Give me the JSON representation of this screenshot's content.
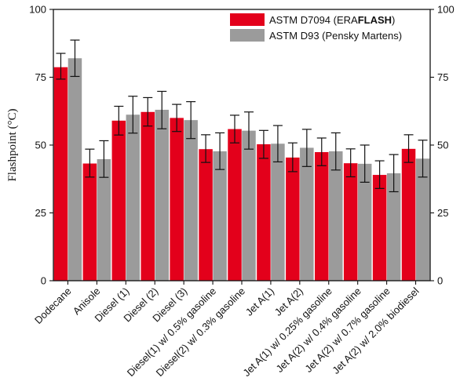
{
  "chart_data": {
    "type": "bar",
    "title": "",
    "xlabel": "",
    "ylabel": "Flashpoint (°C)",
    "ylim": [
      0,
      100
    ],
    "yticks": [
      0,
      25,
      50,
      75,
      100
    ],
    "legend_position": "top-right",
    "grid": false,
    "categories": [
      "Dodecane",
      "Anisole",
      "Diesel (1)",
      "Diesel (2)",
      "Diesel (3)",
      "Diesel(1) w/ 0.5% gasoline",
      "Diesel(2) w/ 0.3% gasoline",
      "Jet A(1)",
      "Jet A(2)",
      "Jet A(1) w/ 0.25% gasoline",
      "Jet A(2) w/ 0.4% gasoline",
      "Jet A(2) w/ 0.7% gasoline",
      "Jet A(2) w/ 2.0% biodiesel"
    ],
    "series": [
      {
        "name": "ASTM D7094 (ERAFLASH)",
        "legend_parts": [
          "ASTM D7094 (ERA",
          "FLASH",
          ")"
        ],
        "color": "#e3001b",
        "values": [
          78.7,
          43.2,
          59.0,
          62.2,
          60.0,
          48.5,
          55.9,
          50.3,
          45.4,
          47.4,
          43.3,
          39.0,
          48.6
        ],
        "error_low": [
          74.3,
          38.2,
          53.7,
          57.0,
          55.0,
          43.6,
          50.8,
          45.1,
          40.2,
          42.4,
          38.3,
          34.0,
          43.6
        ],
        "error_high": [
          83.8,
          48.5,
          64.3,
          67.5,
          65.0,
          53.8,
          61.0,
          55.4,
          50.8,
          52.6,
          48.6,
          44.2,
          53.8
        ]
      },
      {
        "name": "ASTM D93 (Pensky Martens)",
        "color": "#9b9b9b",
        "values": [
          82.0,
          44.8,
          61.2,
          63.0,
          59.2,
          47.7,
          55.3,
          50.5,
          49.0,
          47.7,
          43.1,
          39.6,
          45.0
        ],
        "error_low": [
          75.3,
          38.1,
          54.4,
          56.0,
          52.4,
          41.0,
          48.5,
          43.8,
          42.1,
          40.8,
          36.3,
          32.8,
          38.2
        ],
        "error_high": [
          88.7,
          51.6,
          68.0,
          69.8,
          66.0,
          54.5,
          62.2,
          57.2,
          55.8,
          54.5,
          50.0,
          46.5,
          51.8
        ]
      }
    ]
  }
}
